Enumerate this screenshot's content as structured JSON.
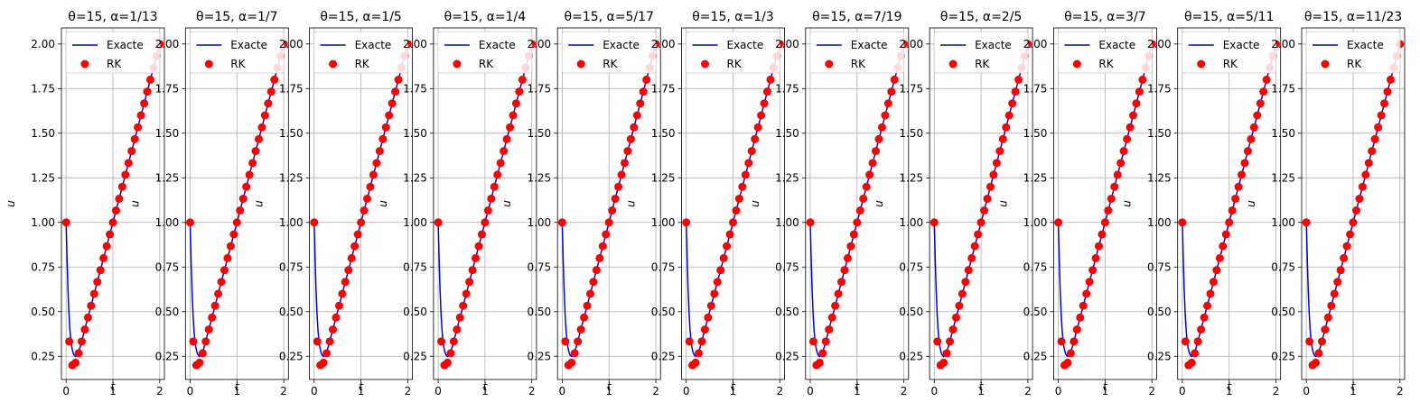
{
  "chart_data": {
    "type": "line",
    "panel_count": 11,
    "panels": [
      {
        "title": "θ=15, α=1/13"
      },
      {
        "title": "θ=15, α=1/7"
      },
      {
        "title": "θ=15, α=1/5"
      },
      {
        "title": "θ=15, α=1/4"
      },
      {
        "title": "θ=15, α=5/17"
      },
      {
        "title": "θ=15, α=1/3"
      },
      {
        "title": "θ=15, α=7/19"
      },
      {
        "title": "θ=15, α=2/5"
      },
      {
        "title": "θ=15, α=3/7"
      },
      {
        "title": "θ=15, α=5/11"
      },
      {
        "title": "θ=15, α=11/23"
      }
    ],
    "xlabel": "t",
    "ylabel": "u",
    "xlim": [
      -0.1,
      2.1
    ],
    "ylim": [
      0.12,
      2.09
    ],
    "x_ticks": [
      0,
      1,
      2
    ],
    "x_tick_labels": [
      "0",
      "1",
      "2"
    ],
    "y_ticks": [
      0.25,
      0.5,
      0.75,
      1.0,
      1.25,
      1.5,
      1.75,
      2.0
    ],
    "y_tick_labels": [
      "0.25",
      "0.50",
      "0.75",
      "1.00",
      "1.25",
      "1.50",
      "1.75",
      "2.00"
    ],
    "grid": true,
    "legend_position": "upper-left",
    "series": [
      {
        "name": "Exacte",
        "style": "line",
        "color": "#0000ff",
        "x": [
          0,
          0.02,
          0.04,
          0.06,
          0.08,
          0.1,
          0.12,
          0.14,
          0.16,
          0.18,
          0.2,
          0.25,
          0.3,
          0.4,
          0.5,
          0.6,
          0.7,
          0.8,
          0.9,
          1.0,
          1.1,
          1.2,
          1.3,
          1.4,
          1.5,
          1.6,
          1.7,
          1.8,
          1.9,
          2.0
        ],
        "y": [
          1.0,
          0.795,
          0.624,
          0.495,
          0.404,
          0.343,
          0.303,
          0.278,
          0.262,
          0.254,
          0.249,
          0.266,
          0.302,
          0.401,
          0.5,
          0.6,
          0.7,
          0.8,
          0.9,
          1.0,
          1.1,
          1.2,
          1.3,
          1.4,
          1.5,
          1.6,
          1.7,
          1.8,
          1.9,
          2.0
        ]
      },
      {
        "name": "RK",
        "style": "markers",
        "color": "#ff0000",
        "x": [
          0,
          0.0667,
          0.1333,
          0.2,
          0.2667,
          0.3333,
          0.4,
          0.4667,
          0.5333,
          0.6,
          0.6667,
          0.7333,
          0.8,
          0.8667,
          0.9333,
          1.0,
          1.0667,
          1.1333,
          1.2,
          1.2667,
          1.3333,
          1.4,
          1.4667,
          1.5333,
          1.6,
          1.6667,
          1.7333,
          1.8,
          1.8667,
          1.9333,
          2.0
        ],
        "y": [
          1.0,
          0.333,
          0.2,
          0.214,
          0.267,
          0.333,
          0.4,
          0.467,
          0.533,
          0.6,
          0.667,
          0.733,
          0.8,
          0.867,
          0.933,
          1.0,
          1.067,
          1.133,
          1.2,
          1.267,
          1.333,
          1.4,
          1.467,
          1.533,
          1.6,
          1.667,
          1.733,
          1.8,
          1.867,
          1.933,
          2.0
        ]
      }
    ]
  }
}
